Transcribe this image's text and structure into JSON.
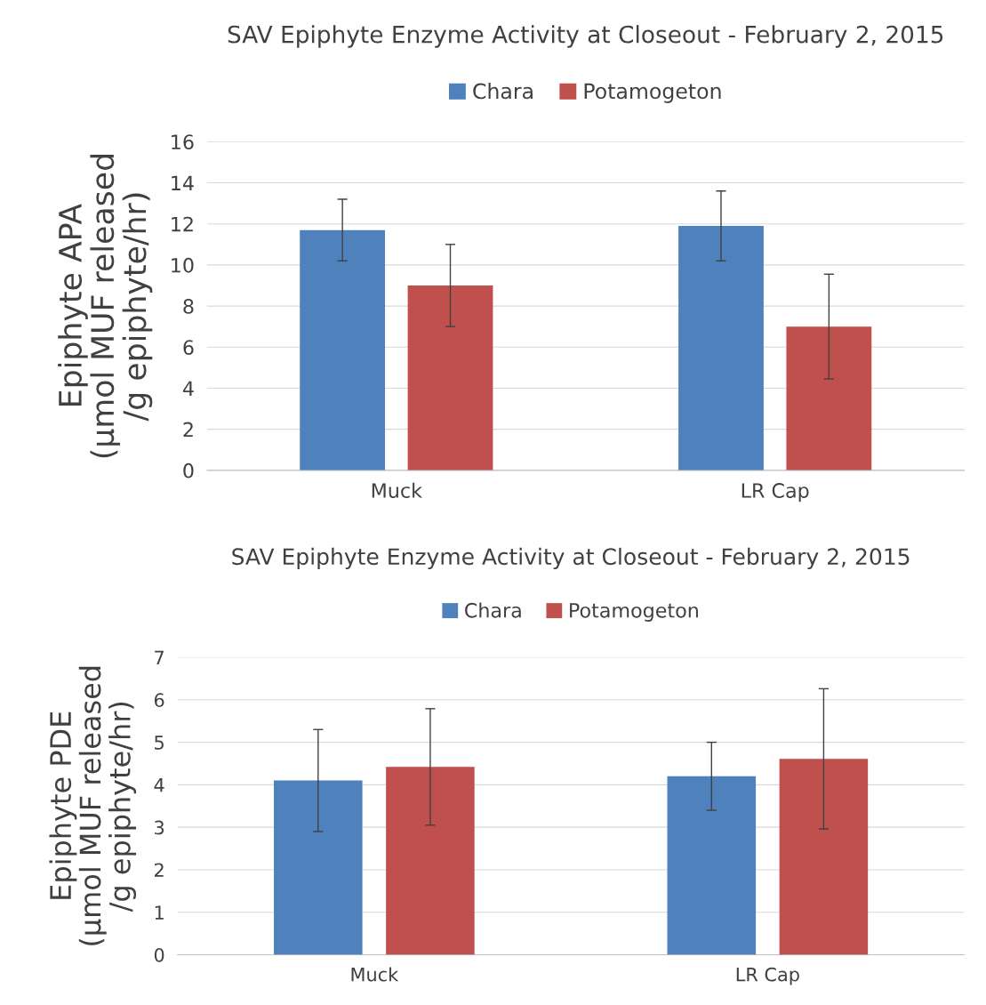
{
  "chart_data": [
    {
      "type": "bar",
      "title": "SAV Epiphyte Enzyme Activity at Closeout - February 2, 2015",
      "ylabel": "Epiphyte APA\n(µmol MUF released\n/g epiphyte/hr)",
      "categories": [
        "Muck",
        "LR Cap"
      ],
      "series": [
        {
          "name": "Chara",
          "color": "#4f81bd",
          "values": [
            11.7,
            11.9
          ],
          "errors": [
            1.5,
            1.7
          ]
        },
        {
          "name": "Potamogeton",
          "color": "#c0504d",
          "values": [
            9.0,
            7.0
          ],
          "errors": [
            2.0,
            2.55
          ]
        }
      ],
      "ylim": [
        0,
        16
      ],
      "yticks": [
        0,
        2,
        4,
        6,
        8,
        10,
        12,
        14,
        16
      ],
      "grid": "y",
      "legend": "top"
    },
    {
      "type": "bar",
      "title": "SAV Epiphyte Enzyme Activity at Closeout - February 2, 2015",
      "ylabel": "Epiphyte PDE\n(µmol MUF released\n/g epiphyte/hr)",
      "categories": [
        "Muck",
        "LR Cap"
      ],
      "series": [
        {
          "name": "Chara",
          "color": "#4f81bd",
          "values": [
            4.1,
            4.2
          ],
          "errors": [
            1.2,
            0.8
          ]
        },
        {
          "name": "Potamogeton",
          "color": "#c0504d",
          "values": [
            4.42,
            4.61
          ],
          "errors": [
            1.37,
            1.65
          ]
        }
      ],
      "ylim": [
        0,
        7
      ],
      "yticks": [
        0,
        1,
        2,
        3,
        4,
        5,
        6,
        7
      ],
      "grid": "y",
      "legend": "top"
    }
  ]
}
